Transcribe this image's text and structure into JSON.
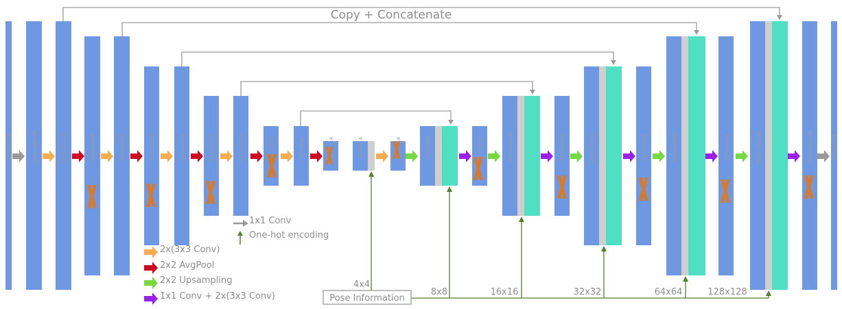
{
  "colors": {
    "block": "#6f98e3",
    "block_alt": "#4fe0c4",
    "sep": "#cfcfcf",
    "line": "#9a9a9a",
    "conv": "#f5ad4f",
    "pool": "#cf0b22",
    "upsample": "#76d93f",
    "conv1x1": "#9b20ea",
    "gray_arrow": "#9a9a9a",
    "dropout": "#d87a2a",
    "pose": "#557f2f"
  },
  "title": "Copy + Concatenate",
  "block_labels": [
    "3x128x128",
    "128x128x128",
    "256x128x128",
    "256x64x64",
    "512x64x64",
    "512x32x32",
    "512x32x32",
    "512x16x16",
    "512x16x16",
    "512x8x8",
    "512x8x8",
    "512x4x4",
    "519x4x4",
    "512x4x4",
    "1031x8x8",
    "512x8x8",
    "1031x16x16",
    "512x16x16",
    "1031x32x32",
    "512x32x32",
    "1031x64x64",
    "256x64x64",
    "519x128x128",
    "128x128x128",
    "3x128x128"
  ],
  "legend": {
    "conv1x1": "1x1 Conv",
    "onehot": "One-hot encoding",
    "conv3x3": "2x(3x3 Conv)",
    "avgpool": "2x2 AvgPool",
    "upsampling": "2x2 Upsampling",
    "conv1x1_conv3x3": "1x1 Conv + 2x(3x3 Conv)"
  },
  "pose": {
    "box_label": "Pose Information",
    "sizes": [
      "4x4",
      "8x8",
      "16x16",
      "32x32",
      "64x64",
      "128x128"
    ]
  }
}
